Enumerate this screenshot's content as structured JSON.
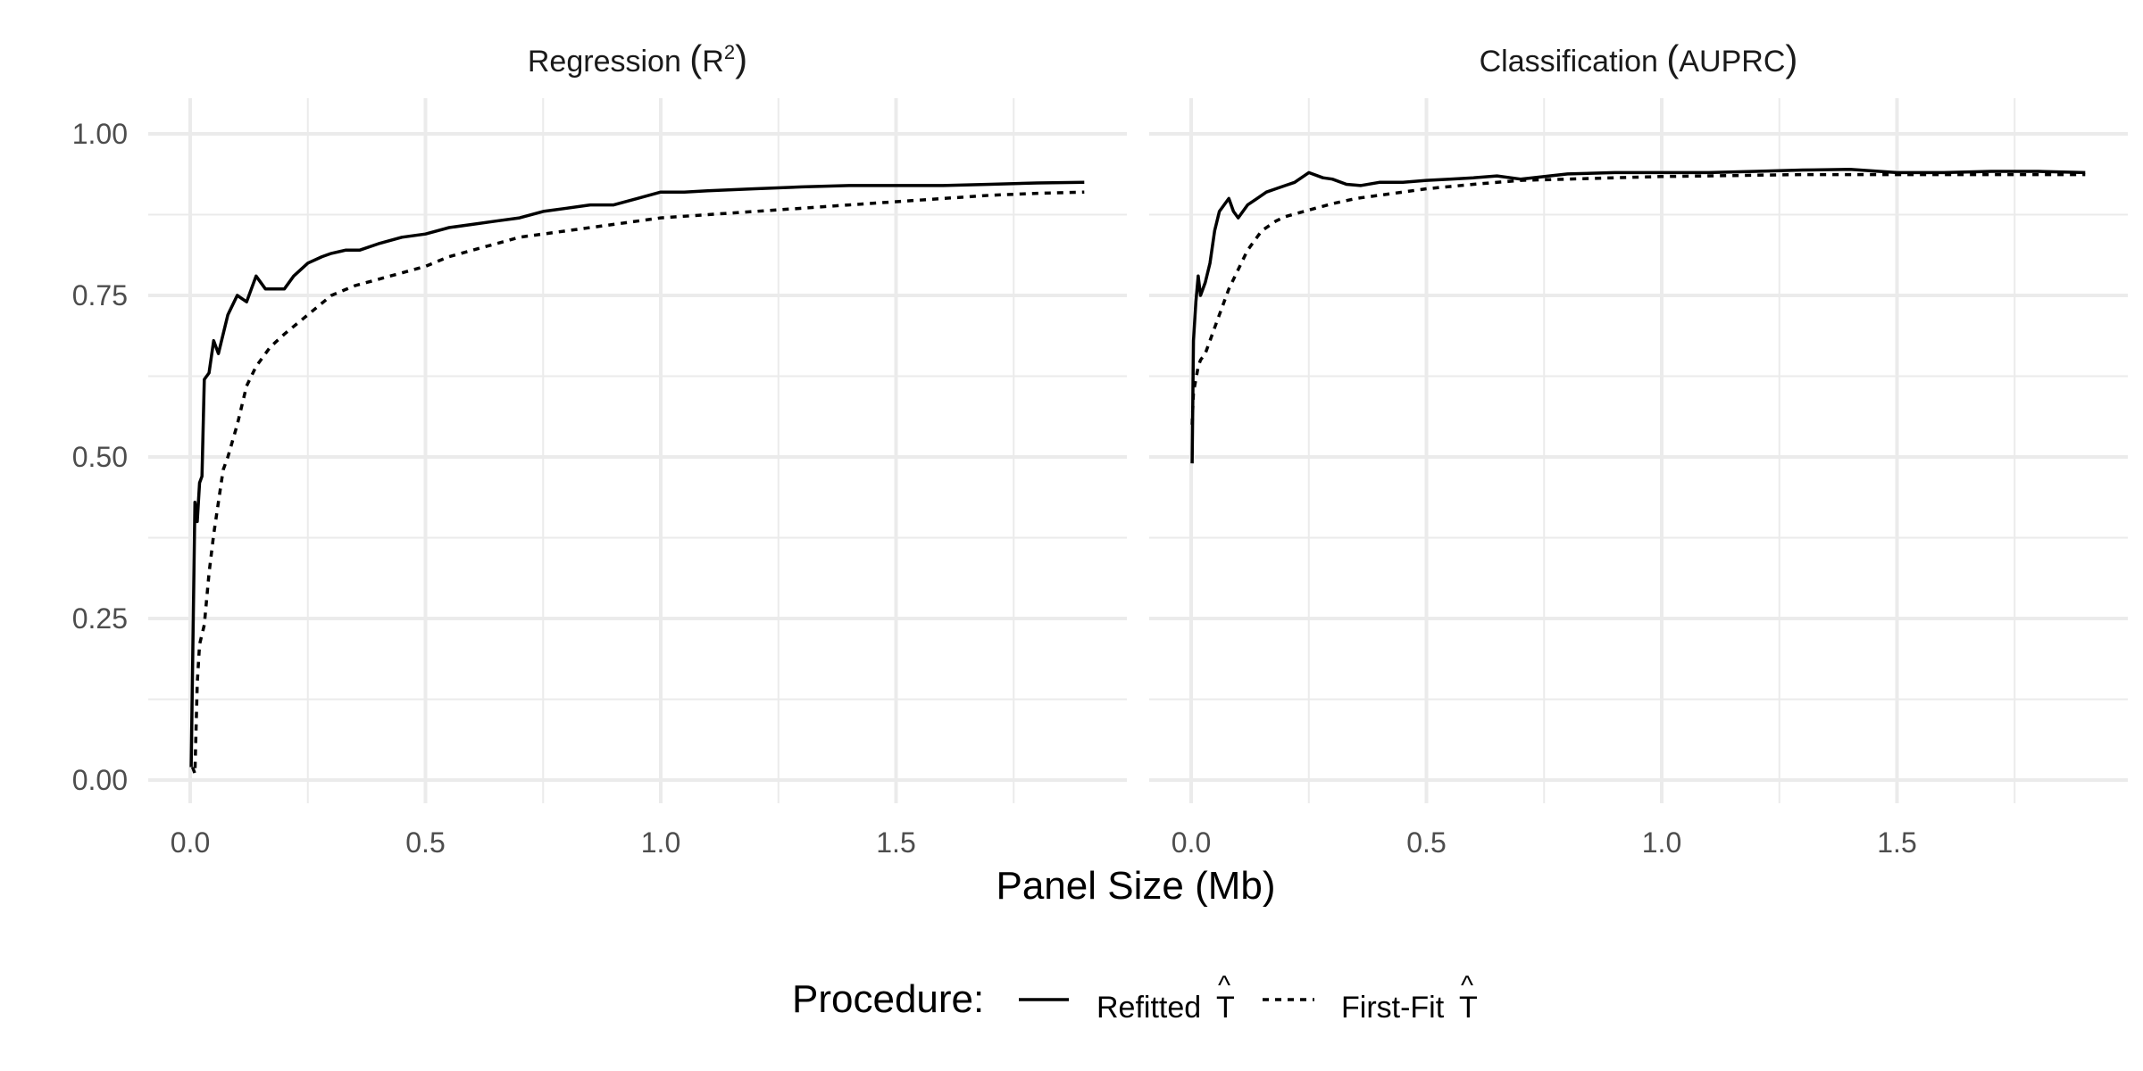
{
  "chart_data": {
    "type": "line",
    "xlabel": "Panel Size (Mb)",
    "legend": {
      "title": "Procedure:",
      "position": "bottom",
      "entries": [
        {
          "label": "Refitted",
          "hat_symbol": "T",
          "linetype": "solid"
        },
        {
          "label": "First-Fit",
          "hat_symbol": "T",
          "linetype": "dashed"
        }
      ]
    },
    "grid": true,
    "xlim": [
      0,
      1.9
    ],
    "ylim": [
      0,
      1.0
    ],
    "x_ticks": [
      "0.0",
      "0.5",
      "1.0",
      "1.5"
    ],
    "y_ticks": [
      "0.00",
      "0.25",
      "0.50",
      "0.75",
      "1.00"
    ],
    "panels": [
      {
        "title": "Regression",
        "title_metric": "R",
        "title_superscript": "2",
        "series": [
          {
            "name": "Refitted",
            "linetype": "solid",
            "x": [
              0.002,
              0.01,
              0.015,
              0.02,
              0.025,
              0.03,
              0.04,
              0.05,
              0.06,
              0.07,
              0.08,
              0.1,
              0.12,
              0.14,
              0.16,
              0.18,
              0.2,
              0.22,
              0.25,
              0.28,
              0.3,
              0.33,
              0.36,
              0.4,
              0.45,
              0.5,
              0.55,
              0.6,
              0.65,
              0.7,
              0.75,
              0.8,
              0.85,
              0.9,
              0.95,
              1.0,
              1.05,
              1.1,
              1.2,
              1.3,
              1.4,
              1.5,
              1.6,
              1.7,
              1.8,
              1.9
            ],
            "y": [
              0.02,
              0.43,
              0.4,
              0.46,
              0.47,
              0.62,
              0.63,
              0.68,
              0.66,
              0.69,
              0.72,
              0.75,
              0.74,
              0.78,
              0.76,
              0.76,
              0.76,
              0.78,
              0.8,
              0.81,
              0.815,
              0.82,
              0.82,
              0.83,
              0.84,
              0.845,
              0.855,
              0.86,
              0.865,
              0.87,
              0.88,
              0.885,
              0.89,
              0.89,
              0.9,
              0.91,
              0.91,
              0.912,
              0.915,
              0.918,
              0.92,
              0.92,
              0.92,
              0.922,
              0.924,
              0.925
            ]
          },
          {
            "name": "First-Fit",
            "linetype": "dashed",
            "x": [
              0.005,
              0.01,
              0.015,
              0.02,
              0.03,
              0.04,
              0.05,
              0.06,
              0.07,
              0.08,
              0.1,
              0.12,
              0.14,
              0.17,
              0.2,
              0.25,
              0.3,
              0.35,
              0.4,
              0.45,
              0.5,
              0.55,
              0.6,
              0.65,
              0.7,
              0.75,
              0.8,
              0.9,
              1.0,
              1.1,
              1.2,
              1.3,
              1.4,
              1.5,
              1.6,
              1.7,
              1.8,
              1.9
            ],
            "y": [
              0.02,
              0.01,
              0.15,
              0.21,
              0.24,
              0.32,
              0.38,
              0.43,
              0.48,
              0.5,
              0.55,
              0.61,
              0.64,
              0.67,
              0.69,
              0.72,
              0.75,
              0.765,
              0.775,
              0.785,
              0.795,
              0.81,
              0.82,
              0.83,
              0.84,
              0.845,
              0.85,
              0.86,
              0.87,
              0.875,
              0.88,
              0.885,
              0.89,
              0.895,
              0.9,
              0.905,
              0.908,
              0.91
            ]
          }
        ]
      },
      {
        "title": "Classification",
        "title_metric": "AUPRC",
        "title_superscript": "",
        "series": [
          {
            "name": "Refitted",
            "linetype": "solid",
            "x": [
              0.002,
              0.005,
              0.01,
              0.015,
              0.02,
              0.03,
              0.04,
              0.05,
              0.06,
              0.07,
              0.08,
              0.09,
              0.1,
              0.12,
              0.14,
              0.16,
              0.18,
              0.2,
              0.22,
              0.25,
              0.28,
              0.3,
              0.33,
              0.36,
              0.4,
              0.45,
              0.5,
              0.55,
              0.6,
              0.65,
              0.7,
              0.8,
              0.9,
              1.0,
              1.1,
              1.2,
              1.3,
              1.4,
              1.5,
              1.6,
              1.7,
              1.8,
              1.9
            ],
            "y": [
              0.49,
              0.68,
              0.74,
              0.78,
              0.75,
              0.77,
              0.8,
              0.85,
              0.88,
              0.89,
              0.9,
              0.88,
              0.87,
              0.89,
              0.9,
              0.91,
              0.915,
              0.92,
              0.925,
              0.94,
              0.932,
              0.93,
              0.922,
              0.92,
              0.925,
              0.925,
              0.928,
              0.93,
              0.932,
              0.935,
              0.93,
              0.938,
              0.94,
              0.94,
              0.94,
              0.942,
              0.944,
              0.945,
              0.94,
              0.94,
              0.942,
              0.942,
              0.94
            ]
          },
          {
            "name": "First-Fit",
            "linetype": "dashed",
            "x": [
              0.002,
              0.005,
              0.01,
              0.015,
              0.02,
              0.03,
              0.04,
              0.05,
              0.06,
              0.08,
              0.1,
              0.12,
              0.15,
              0.18,
              0.2,
              0.25,
              0.3,
              0.35,
              0.4,
              0.45,
              0.5,
              0.6,
              0.7,
              0.8,
              0.9,
              1.0,
              1.1,
              1.2,
              1.3,
              1.4,
              1.5,
              1.6,
              1.7,
              1.8,
              1.9
            ],
            "y": [
              0.55,
              0.6,
              0.62,
              0.64,
              0.65,
              0.66,
              0.68,
              0.7,
              0.72,
              0.76,
              0.79,
              0.82,
              0.85,
              0.865,
              0.872,
              0.882,
              0.892,
              0.9,
              0.905,
              0.91,
              0.915,
              0.922,
              0.928,
              0.93,
              0.932,
              0.934,
              0.935,
              0.936,
              0.937,
              0.937,
              0.937,
              0.937,
              0.937,
              0.937,
              0.937
            ]
          }
        ]
      }
    ]
  }
}
